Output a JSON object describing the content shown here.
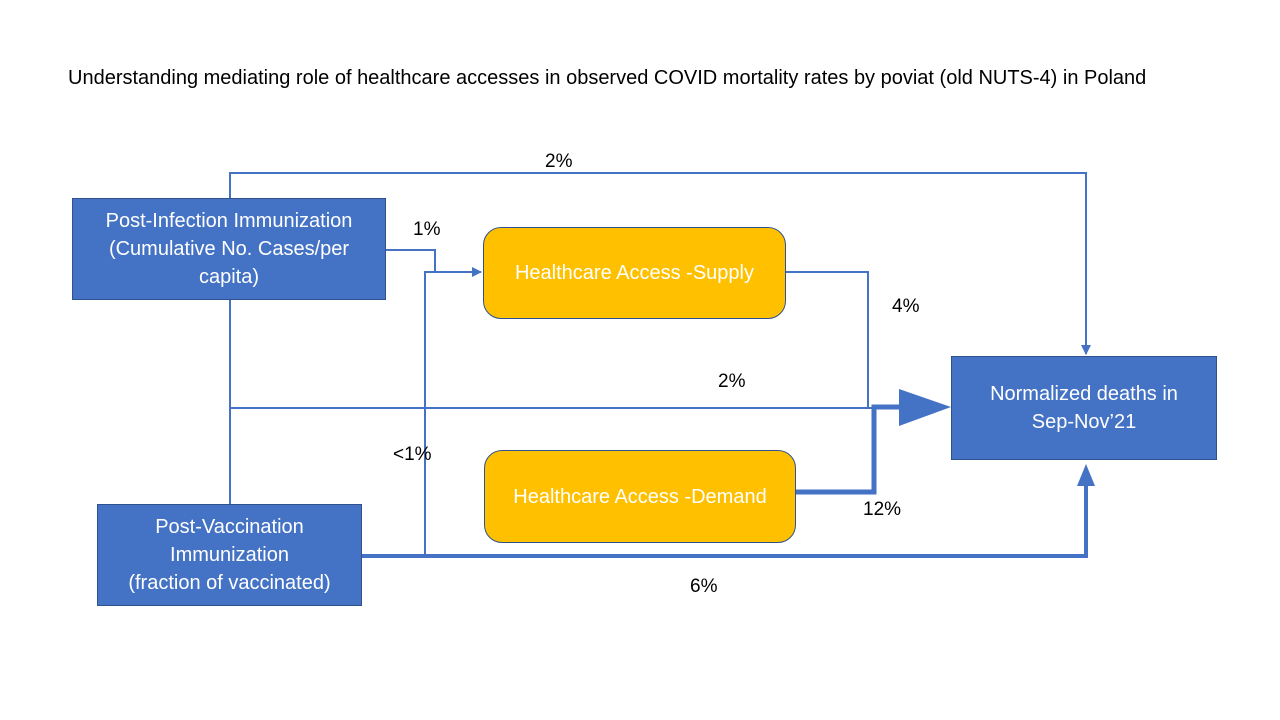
{
  "title": "Understanding mediating role of healthcare accesses in observed COVID mortality rates by poviat (old NUTS-4) in Poland",
  "colors": {
    "node_blue": "#4472C4",
    "node_yellow": "#FFC000",
    "edge": "#4472C4",
    "node_text": "#FFFFFF"
  },
  "nodes": {
    "post_infection": {
      "line1": "Post-Infection Immunization",
      "line2": "(Cumulative No. Cases/per",
      "line3": "capita)"
    },
    "supply": {
      "label": "Healthcare Access -Supply"
    },
    "demand": {
      "label": "Healthcare Access -Demand"
    },
    "deaths": {
      "line1": "Normalized deaths in",
      "line2": "Sep-Nov’21"
    },
    "post_vaccination": {
      "line1": "Post-Vaccination",
      "line2": "Immunization",
      "line3": "(fraction of vaccinated)"
    }
  },
  "edges": {
    "infection_to_deaths_top": "2%",
    "infection_to_supply": "1%",
    "supply_to_deaths": "4%",
    "infection_to_deaths_middle": "2%",
    "vaccination_to_supply": "<1%",
    "demand_to_deaths": "12%",
    "vaccination_to_deaths": "6%"
  }
}
